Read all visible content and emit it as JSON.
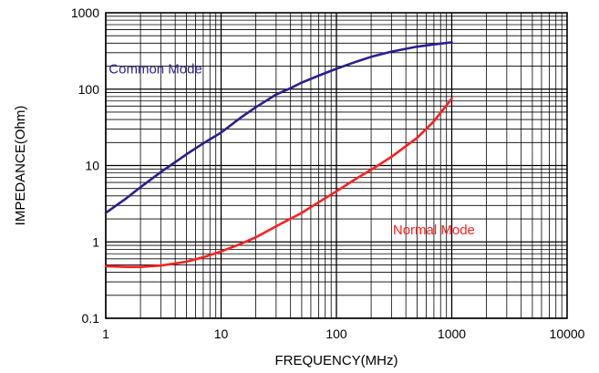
{
  "chart_data": {
    "type": "line",
    "xlabel": "FREQUENCY(MHz)",
    "ylabel": "IMPEDANCE(Ohm)",
    "xscale": "log",
    "yscale": "log",
    "xlim": [
      1,
      10000
    ],
    "ylim": [
      0.1,
      1000
    ],
    "grid": true,
    "x_ticks": [
      "1",
      "10",
      "100",
      "1000",
      "10000"
    ],
    "y_ticks": [
      "0.1",
      "1",
      "10",
      "100",
      "1000"
    ],
    "series": [
      {
        "name": "Common Mode",
        "color": "#2a1f8f",
        "x": [
          1,
          1.5,
          2,
          3,
          5,
          7,
          10,
          15,
          20,
          30,
          40,
          50,
          70,
          100,
          150,
          200,
          300,
          500,
          700,
          1000
        ],
        "y": [
          2.4,
          3.7,
          5.2,
          8.2,
          14,
          19.5,
          27,
          43,
          58,
          85,
          103,
          122,
          150,
          185,
          230,
          265,
          310,
          360,
          385,
          410
        ]
      },
      {
        "name": "Normal Mode",
        "color": "#ff2020",
        "x": [
          1,
          1.5,
          2,
          3,
          5,
          7,
          10,
          15,
          20,
          30,
          50,
          70,
          100,
          150,
          200,
          300,
          500,
          700,
          1000
        ],
        "y": [
          0.48,
          0.47,
          0.47,
          0.49,
          0.55,
          0.63,
          0.75,
          0.95,
          1.15,
          1.6,
          2.4,
          3.3,
          4.6,
          6.8,
          8.8,
          13,
          23,
          38,
          75
        ]
      }
    ]
  }
}
